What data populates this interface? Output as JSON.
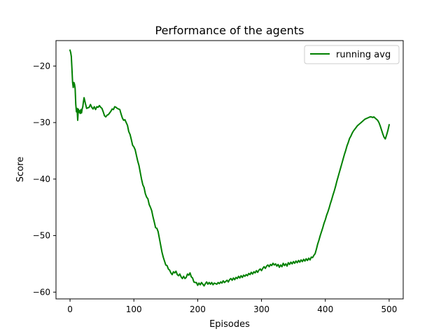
{
  "chart_data": {
    "type": "line",
    "title": "Performance of the agents",
    "xlabel": "Episodes",
    "ylabel": "Score",
    "ylabel_color": "#008000",
    "xlim": [
      -22,
      522
    ],
    "ylim": [
      -61.2,
      -15.5
    ],
    "x_ticks": [
      0,
      100,
      200,
      300,
      400,
      500
    ],
    "x_tick_labels": [
      "0",
      "100",
      "200",
      "300",
      "400",
      "500"
    ],
    "y_ticks": [
      -20,
      -30,
      -40,
      -50,
      -60
    ],
    "y_tick_labels": [
      "−20",
      "−30",
      "−40",
      "−50",
      "−60"
    ],
    "grid": false,
    "legend": {
      "position": "top-right"
    },
    "series": [
      {
        "name": "running avg",
        "color": "#008000",
        "points": [
          [
            0,
            -17.2
          ],
          [
            1,
            -17.6
          ],
          [
            2,
            -18.3
          ],
          [
            3,
            -20.5
          ],
          [
            4,
            -22.9
          ],
          [
            5,
            -23.8
          ],
          [
            6,
            -22.9
          ],
          [
            7,
            -23.2
          ],
          [
            8,
            -24.0
          ],
          [
            9,
            -26.8
          ],
          [
            10,
            -28.1
          ],
          [
            11,
            -27.5
          ],
          [
            12,
            -29.6
          ],
          [
            13,
            -27.6
          ],
          [
            14,
            -28.2
          ],
          [
            15,
            -27.9
          ],
          [
            16,
            -28.4
          ],
          [
            17,
            -27.7
          ],
          [
            18,
            -28.3
          ],
          [
            19,
            -27.6
          ],
          [
            20,
            -27.2
          ],
          [
            21,
            -26.3
          ],
          [
            22,
            -25.6
          ],
          [
            24,
            -26.6
          ],
          [
            26,
            -27.5
          ],
          [
            28,
            -27.4
          ],
          [
            30,
            -27.3
          ],
          [
            32,
            -26.8
          ],
          [
            34,
            -27.3
          ],
          [
            36,
            -27.6
          ],
          [
            38,
            -27.2
          ],
          [
            40,
            -27.7
          ],
          [
            42,
            -27.2
          ],
          [
            44,
            -27.3
          ],
          [
            46,
            -27.0
          ],
          [
            48,
            -27.3
          ],
          [
            50,
            -27.5
          ],
          [
            52,
            -28.1
          ],
          [
            54,
            -28.8
          ],
          [
            56,
            -29.0
          ],
          [
            58,
            -28.7
          ],
          [
            60,
            -28.6
          ],
          [
            62,
            -28.3
          ],
          [
            64,
            -28.0
          ],
          [
            66,
            -27.6
          ],
          [
            68,
            -27.7
          ],
          [
            70,
            -27.2
          ],
          [
            72,
            -27.3
          ],
          [
            74,
            -27.5
          ],
          [
            76,
            -27.6
          ],
          [
            78,
            -27.7
          ],
          [
            80,
            -28.5
          ],
          [
            82,
            -29.2
          ],
          [
            84,
            -29.6
          ],
          [
            86,
            -29.5
          ],
          [
            88,
            -30.0
          ],
          [
            90,
            -30.5
          ],
          [
            92,
            -31.6
          ],
          [
            94,
            -32.1
          ],
          [
            96,
            -33.0
          ],
          [
            98,
            -34.0
          ],
          [
            100,
            -34.3
          ],
          [
            102,
            -34.8
          ],
          [
            104,
            -35.8
          ],
          [
            106,
            -36.8
          ],
          [
            108,
            -37.6
          ],
          [
            110,
            -38.8
          ],
          [
            112,
            -40.0
          ],
          [
            114,
            -41.0
          ],
          [
            116,
            -41.5
          ],
          [
            118,
            -42.6
          ],
          [
            120,
            -43.2
          ],
          [
            122,
            -43.5
          ],
          [
            124,
            -44.5
          ],
          [
            126,
            -45.0
          ],
          [
            128,
            -45.6
          ],
          [
            130,
            -46.7
          ],
          [
            132,
            -47.6
          ],
          [
            134,
            -48.6
          ],
          [
            136,
            -48.7
          ],
          [
            138,
            -49.3
          ],
          [
            140,
            -50.5
          ],
          [
            142,
            -51.7
          ],
          [
            144,
            -52.9
          ],
          [
            146,
            -53.8
          ],
          [
            148,
            -54.5
          ],
          [
            150,
            -55.2
          ],
          [
            152,
            -55.3
          ],
          [
            154,
            -55.9
          ],
          [
            156,
            -56.1
          ],
          [
            158,
            -56.6
          ],
          [
            160,
            -56.9
          ],
          [
            162,
            -56.4
          ],
          [
            164,
            -56.6
          ],
          [
            166,
            -56.3
          ],
          [
            168,
            -56.9
          ],
          [
            170,
            -57.1
          ],
          [
            172,
            -56.8
          ],
          [
            174,
            -57.3
          ],
          [
            176,
            -57.6
          ],
          [
            178,
            -57.2
          ],
          [
            180,
            -57.6
          ],
          [
            182,
            -57.4
          ],
          [
            184,
            -56.8
          ],
          [
            186,
            -57.0
          ],
          [
            188,
            -56.6
          ],
          [
            190,
            -57.3
          ],
          [
            192,
            -57.5
          ],
          [
            194,
            -58.2
          ],
          [
            196,
            -58.3
          ],
          [
            198,
            -58.3
          ],
          [
            200,
            -58.8
          ],
          [
            202,
            -58.4
          ],
          [
            204,
            -58.7
          ],
          [
            206,
            -58.3
          ],
          [
            208,
            -58.6
          ],
          [
            210,
            -58.9
          ],
          [
            212,
            -58.5
          ],
          [
            214,
            -58.2
          ],
          [
            216,
            -58.6
          ],
          [
            218,
            -58.3
          ],
          [
            220,
            -58.6
          ],
          [
            222,
            -58.3
          ],
          [
            224,
            -58.7
          ],
          [
            226,
            -58.4
          ],
          [
            228,
            -58.5
          ],
          [
            230,
            -58.6
          ],
          [
            232,
            -58.3
          ],
          [
            234,
            -58.5
          ],
          [
            236,
            -58.2
          ],
          [
            238,
            -58.4
          ],
          [
            240,
            -58.0
          ],
          [
            242,
            -58.3
          ],
          [
            244,
            -58.1
          ],
          [
            246,
            -57.9
          ],
          [
            248,
            -58.2
          ],
          [
            250,
            -57.8
          ],
          [
            252,
            -57.6
          ],
          [
            254,
            -57.9
          ],
          [
            256,
            -57.5
          ],
          [
            258,
            -57.8
          ],
          [
            260,
            -57.4
          ],
          [
            262,
            -57.6
          ],
          [
            264,
            -57.2
          ],
          [
            266,
            -57.5
          ],
          [
            268,
            -57.1
          ],
          [
            270,
            -57.4
          ],
          [
            272,
            -57.0
          ],
          [
            274,
            -57.2
          ],
          [
            276,
            -56.9
          ],
          [
            278,
            -57.1
          ],
          [
            280,
            -56.7
          ],
          [
            282,
            -56.9
          ],
          [
            284,
            -56.5
          ],
          [
            286,
            -56.8
          ],
          [
            288,
            -56.4
          ],
          [
            290,
            -56.6
          ],
          [
            292,
            -56.2
          ],
          [
            294,
            -56.5
          ],
          [
            296,
            -56.1
          ],
          [
            298,
            -55.9
          ],
          [
            300,
            -56.2
          ],
          [
            302,
            -55.8
          ],
          [
            304,
            -55.5
          ],
          [
            306,
            -55.8
          ],
          [
            308,
            -55.4
          ],
          [
            310,
            -55.2
          ],
          [
            312,
            -55.5
          ],
          [
            314,
            -55.1
          ],
          [
            316,
            -55.3
          ],
          [
            318,
            -54.9
          ],
          [
            320,
            -55.2
          ],
          [
            322,
            -55.0
          ],
          [
            324,
            -55.4
          ],
          [
            326,
            -55.1
          ],
          [
            328,
            -55.6
          ],
          [
            330,
            -55.2
          ],
          [
            332,
            -55.5
          ],
          [
            334,
            -54.9
          ],
          [
            336,
            -55.3
          ],
          [
            338,
            -55.0
          ],
          [
            340,
            -55.4
          ],
          [
            342,
            -54.8
          ],
          [
            344,
            -55.1
          ],
          [
            346,
            -54.7
          ],
          [
            348,
            -55.0
          ],
          [
            350,
            -54.6
          ],
          [
            352,
            -54.9
          ],
          [
            354,
            -54.5
          ],
          [
            356,
            -54.8
          ],
          [
            358,
            -54.4
          ],
          [
            360,
            -54.7
          ],
          [
            362,
            -54.3
          ],
          [
            364,
            -54.6
          ],
          [
            366,
            -54.2
          ],
          [
            368,
            -54.5
          ],
          [
            370,
            -54.1
          ],
          [
            372,
            -54.4
          ],
          [
            374,
            -54.0
          ],
          [
            376,
            -54.3
          ],
          [
            378,
            -53.8
          ],
          [
            380,
            -53.9
          ],
          [
            382,
            -53.5
          ],
          [
            384,
            -53.2
          ],
          [
            386,
            -52.4
          ],
          [
            388,
            -51.5
          ],
          [
            390,
            -50.8
          ],
          [
            392,
            -50.0
          ],
          [
            394,
            -49.3
          ],
          [
            396,
            -48.6
          ],
          [
            398,
            -47.8
          ],
          [
            400,
            -47.2
          ],
          [
            402,
            -46.4
          ],
          [
            404,
            -45.8
          ],
          [
            406,
            -45.1
          ],
          [
            408,
            -44.3
          ],
          [
            410,
            -43.6
          ],
          [
            412,
            -42.8
          ],
          [
            414,
            -42.1
          ],
          [
            416,
            -41.3
          ],
          [
            418,
            -40.4
          ],
          [
            420,
            -39.6
          ],
          [
            422,
            -38.8
          ],
          [
            424,
            -38.0
          ],
          [
            426,
            -37.2
          ],
          [
            428,
            -36.4
          ],
          [
            430,
            -35.6
          ],
          [
            432,
            -34.9
          ],
          [
            434,
            -34.1
          ],
          [
            436,
            -33.5
          ],
          [
            438,
            -32.8
          ],
          [
            440,
            -32.4
          ],
          [
            442,
            -31.9
          ],
          [
            444,
            -31.5
          ],
          [
            446,
            -31.2
          ],
          [
            448,
            -30.9
          ],
          [
            450,
            -30.6
          ],
          [
            452,
            -30.4
          ],
          [
            454,
            -30.2
          ],
          [
            456,
            -30.0
          ],
          [
            458,
            -29.8
          ],
          [
            460,
            -29.6
          ],
          [
            462,
            -29.4
          ],
          [
            464,
            -29.3
          ],
          [
            466,
            -29.2
          ],
          [
            468,
            -29.1
          ],
          [
            470,
            -29.0
          ],
          [
            472,
            -29.0
          ],
          [
            474,
            -29.1
          ],
          [
            476,
            -29.0
          ],
          [
            478,
            -29.2
          ],
          [
            480,
            -29.4
          ],
          [
            482,
            -29.6
          ],
          [
            484,
            -30.0
          ],
          [
            486,
            -30.6
          ],
          [
            488,
            -31.3
          ],
          [
            490,
            -32.0
          ],
          [
            492,
            -32.6
          ],
          [
            494,
            -32.9
          ],
          [
            496,
            -32.2
          ],
          [
            498,
            -31.4
          ],
          [
            500,
            -30.4
          ]
        ]
      }
    ]
  }
}
